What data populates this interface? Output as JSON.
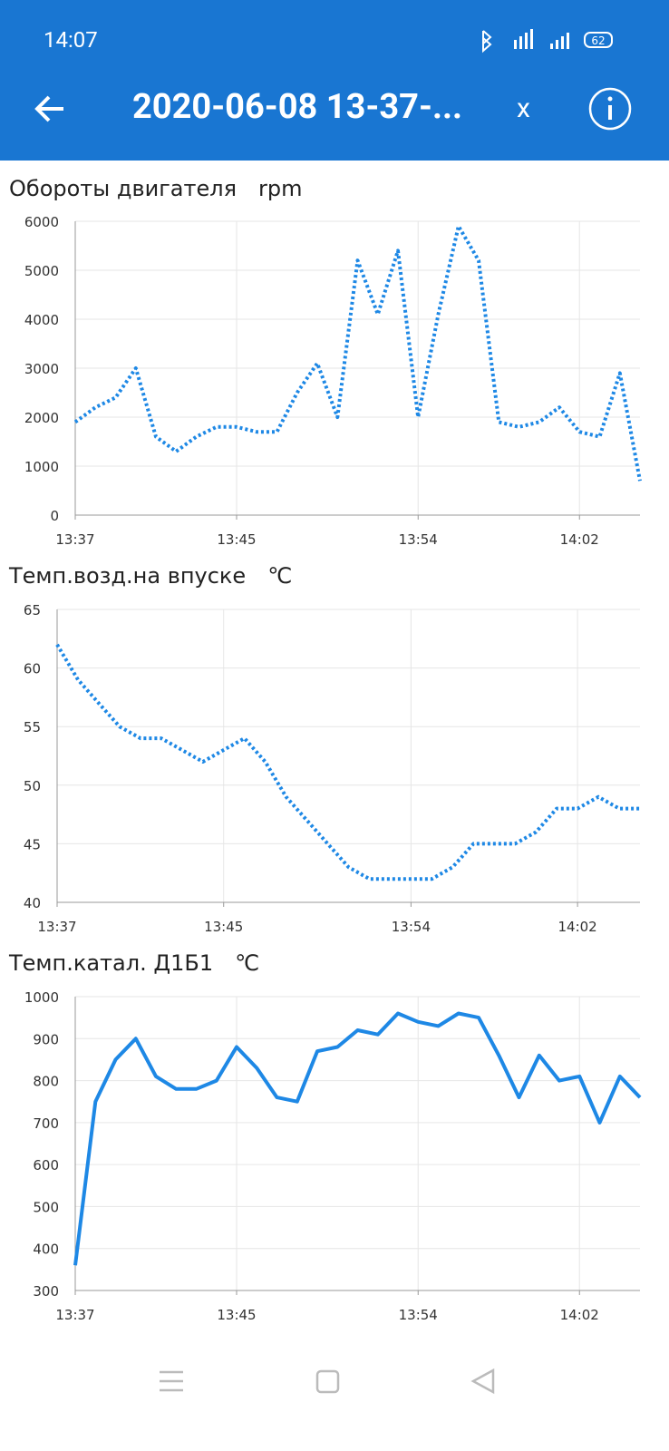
{
  "status_bar": {
    "time": "14:07",
    "battery": "62"
  },
  "header": {
    "title": "2020-06-08 13-37-...",
    "close_button": "x"
  },
  "chart_data": [
    {
      "type": "line",
      "title": "Обороты двигателя",
      "unit": "rpm",
      "color": "#1e88e5",
      "dashed": true,
      "grid": true,
      "x": [
        "13:37",
        "13:38",
        "13:39",
        "13:40",
        "13:41",
        "13:42",
        "13:43",
        "13:44",
        "13:45",
        "13:46",
        "13:47",
        "13:48",
        "13:49",
        "13:50",
        "13:51",
        "13:52",
        "13:53",
        "13:54",
        "13:55",
        "13:56",
        "13:57",
        "13:58",
        "13:59",
        "14:00",
        "14:01",
        "14:02",
        "14:03",
        "14:04",
        "14:05"
      ],
      "values": [
        1900,
        2200,
        2400,
        3000,
        1600,
        1300,
        1600,
        1800,
        1800,
        1700,
        1700,
        2500,
        3100,
        2000,
        5200,
        4100,
        5400,
        2000,
        4100,
        5900,
        5200,
        1900,
        1800,
        1900,
        2200,
        1700,
        1600,
        2900,
        700
      ],
      "xlim": [
        "13:37",
        "14:05"
      ],
      "xticks": [
        "13:37",
        "13:45",
        "13:54",
        "14:02"
      ],
      "ylim": [
        0,
        6000
      ],
      "yticks": [
        0,
        1000,
        2000,
        3000,
        4000,
        5000,
        6000
      ]
    },
    {
      "type": "line",
      "title": "Темп.возд.на впуске",
      "unit": "℃",
      "color": "#1e88e5",
      "dashed": true,
      "grid": true,
      "x": [
        "13:37",
        "13:38",
        "13:39",
        "13:40",
        "13:41",
        "13:42",
        "13:43",
        "13:44",
        "13:45",
        "13:46",
        "13:47",
        "13:48",
        "13:49",
        "13:50",
        "13:51",
        "13:52",
        "13:53",
        "13:54",
        "13:55",
        "13:56",
        "13:57",
        "13:58",
        "13:59",
        "14:00",
        "14:01",
        "14:02",
        "14:03",
        "14:04",
        "14:05"
      ],
      "values": [
        62,
        59,
        57,
        55,
        54,
        54,
        53,
        52,
        53,
        54,
        52,
        49,
        47,
        45,
        43,
        42,
        42,
        42,
        42,
        43,
        45,
        45,
        45,
        46,
        48,
        48,
        49,
        48,
        48
      ],
      "xlim": [
        "13:37",
        "14:05"
      ],
      "xticks": [
        "13:37",
        "13:45",
        "13:54",
        "14:02"
      ],
      "ylim": [
        40,
        65
      ],
      "yticks": [
        40,
        45,
        50,
        55,
        60,
        65
      ]
    },
    {
      "type": "line",
      "title": "Темп.катал. Д1Б1",
      "unit": "℃",
      "color": "#1e88e5",
      "dashed": false,
      "grid": true,
      "x": [
        "13:37",
        "13:38",
        "13:39",
        "13:40",
        "13:41",
        "13:42",
        "13:43",
        "13:44",
        "13:45",
        "13:46",
        "13:47",
        "13:48",
        "13:49",
        "13:50",
        "13:51",
        "13:52",
        "13:53",
        "13:54",
        "13:55",
        "13:56",
        "13:57",
        "13:58",
        "13:59",
        "14:00",
        "14:01",
        "14:02",
        "14:03",
        "14:04",
        "14:05"
      ],
      "values": [
        360,
        750,
        850,
        900,
        810,
        780,
        780,
        800,
        880,
        830,
        760,
        750,
        870,
        880,
        920,
        910,
        960,
        940,
        930,
        960,
        950,
        860,
        760,
        860,
        800,
        810,
        700,
        810,
        760
      ],
      "xlim": [
        "13:37",
        "14:05"
      ],
      "xticks": [
        "13:37",
        "13:45",
        "13:54",
        "14:02"
      ],
      "ylim": [
        300,
        1000
      ],
      "yticks": [
        300,
        400,
        500,
        600,
        700,
        800,
        900,
        1000
      ]
    }
  ]
}
